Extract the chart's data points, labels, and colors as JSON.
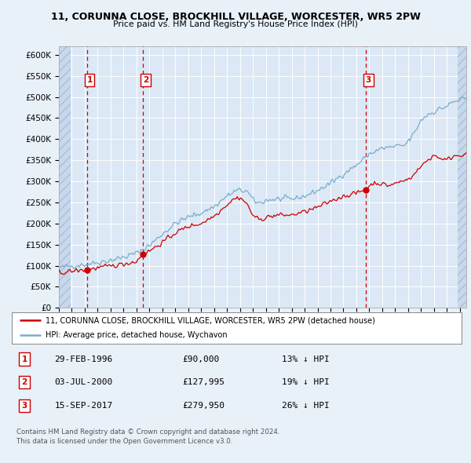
{
  "title1": "11, CORUNNA CLOSE, BROCKHILL VILLAGE, WORCESTER, WR5 2PW",
  "title2": "Price paid vs. HM Land Registry's House Price Index (HPI)",
  "background_color": "#e8f0f8",
  "plot_bg_color": "#dce8f5",
  "red_line_color": "#cc0000",
  "blue_line_color": "#7aaccc",
  "ylim": [
    0,
    620000
  ],
  "yticks": [
    0,
    50000,
    100000,
    150000,
    200000,
    250000,
    300000,
    350000,
    400000,
    450000,
    500000,
    550000,
    600000
  ],
  "ytick_labels": [
    "£0",
    "£50K",
    "£100K",
    "£150K",
    "£200K",
    "£250K",
    "£300K",
    "£350K",
    "£400K",
    "£450K",
    "£500K",
    "£550K",
    "£600K"
  ],
  "xlim_start": 1994.0,
  "xlim_end": 2025.5,
  "hatch_left_end": 1994.92,
  "hatch_right_start": 2024.83,
  "transactions": [
    {
      "year": 1996.16,
      "price": 90000,
      "label": "1"
    },
    {
      "year": 2000.5,
      "price": 127995,
      "label": "2"
    },
    {
      "year": 2017.71,
      "price": 279950,
      "label": "3"
    }
  ],
  "legend_line1": "11, CORUNNA CLOSE, BROCKHILL VILLAGE, WORCESTER, WR5 2PW (detached house)",
  "legend_line2": "HPI: Average price, detached house, Wychavon",
  "table_rows": [
    {
      "num": "1",
      "date": "29-FEB-1996",
      "price": "£90,000",
      "hpi": "13% ↓ HPI"
    },
    {
      "num": "2",
      "date": "03-JUL-2000",
      "price": "£127,995",
      "hpi": "19% ↓ HPI"
    },
    {
      "num": "3",
      "date": "15-SEP-2017",
      "price": "£279,950",
      "hpi": "26% ↓ HPI"
    }
  ],
  "footnote": "Contains HM Land Registry data © Crown copyright and database right 2024.\nThis data is licensed under the Open Government Licence v3.0."
}
